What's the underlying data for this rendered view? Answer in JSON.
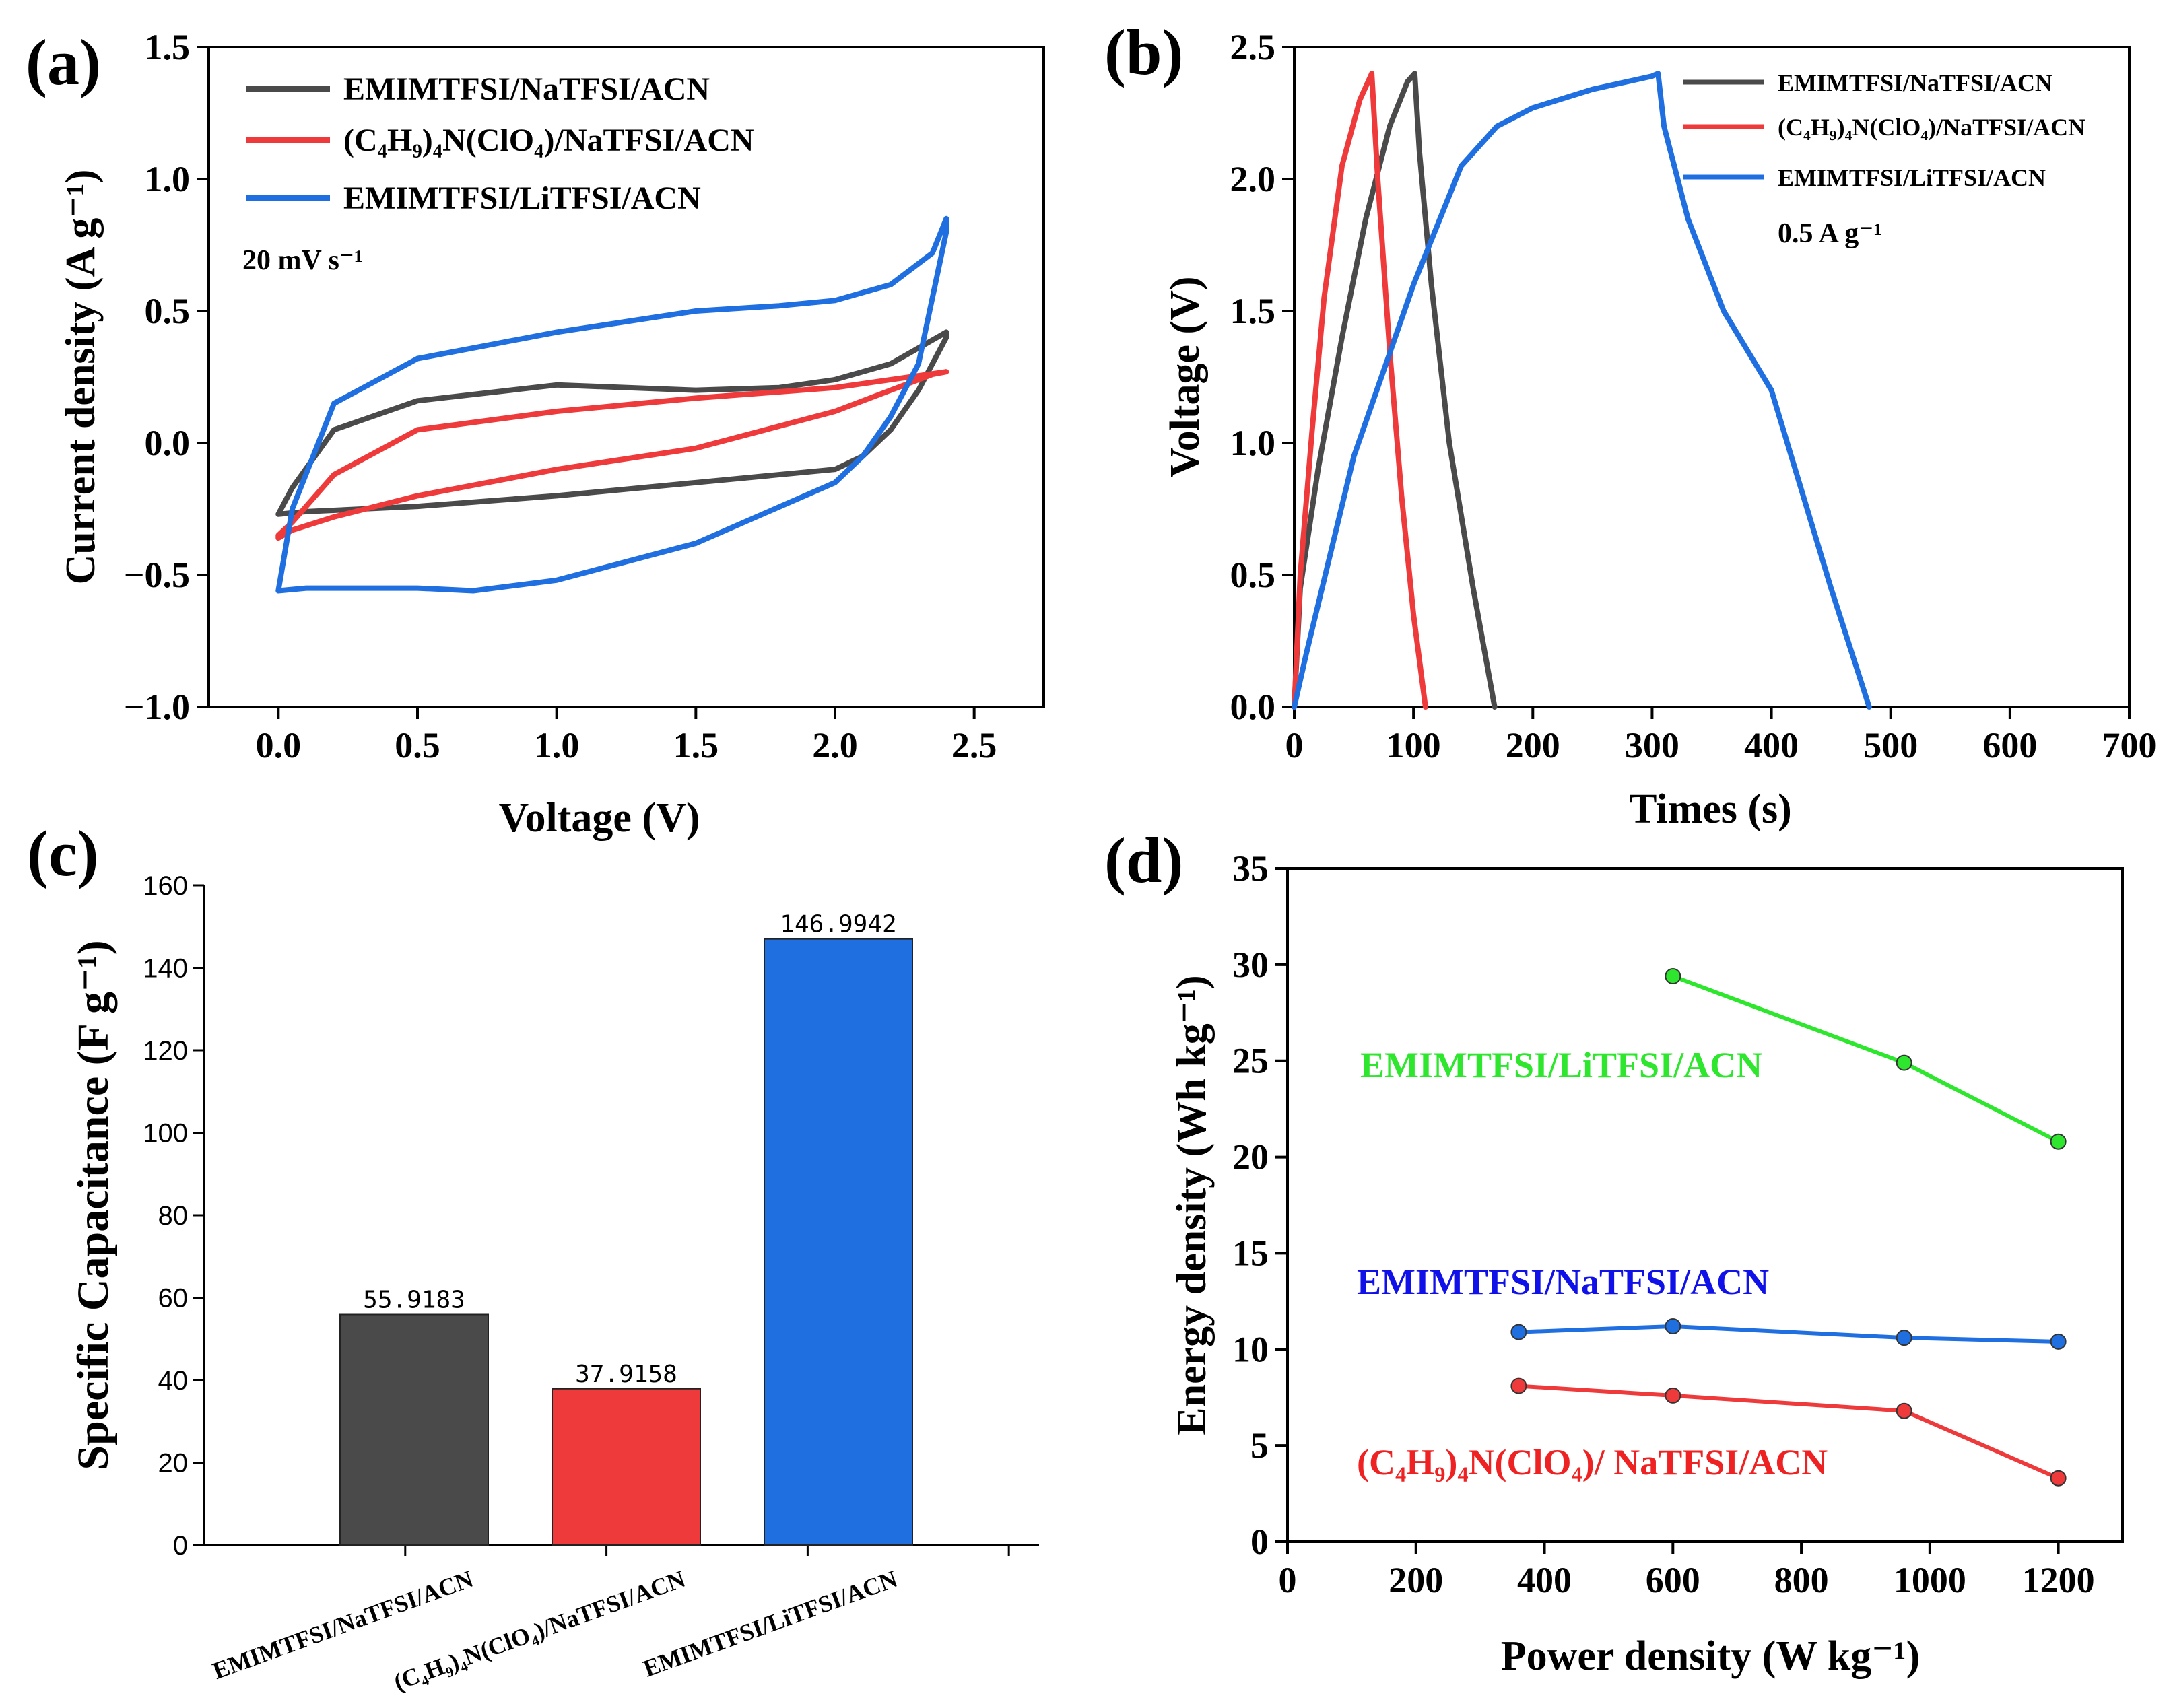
{
  "colors": {
    "black": "#4a4a4a",
    "red": "#ee3a3a",
    "blue": "#1f6fe0",
    "green": "#2ee62e",
    "d_blue": "#1010e8",
    "d_red": "#ee2222"
  },
  "chart_data": [
    {
      "panel": "(a)",
      "type": "line",
      "xlabel": "Voltage (V)",
      "ylabel": "Current density (A g⁻¹)",
      "xlim": [
        -0.25,
        2.75
      ],
      "ylim": [
        -1.0,
        1.5
      ],
      "xticks": [
        "0.0",
        "0.5",
        "1.0",
        "1.5",
        "2.0",
        "2.5"
      ],
      "yticks": [
        "−1.0",
        "−0.5",
        "0.0",
        "0.5",
        "1.0",
        "1.5"
      ],
      "note": "20 mV s⁻¹",
      "series": [
        {
          "name": "EMIMTFSI/NaTFSI/ACN",
          "color": "#4a4a4a",
          "x": [
            0,
            0.05,
            0.2,
            0.5,
            1.0,
            1.5,
            1.8,
            2.0,
            2.2,
            2.4,
            2.4,
            2.3,
            2.2,
            2.1,
            2.0,
            1.5,
            1.0,
            0.5,
            0.1,
            0,
            0
          ],
          "y": [
            -0.27,
            -0.17,
            0.05,
            0.16,
            0.22,
            0.2,
            0.21,
            0.24,
            0.3,
            0.42,
            0.4,
            0.2,
            0.05,
            -0.05,
            -0.1,
            -0.15,
            -0.2,
            -0.24,
            -0.26,
            -0.27,
            -0.27
          ]
        },
        {
          "name": "(C₄H₉)₄N(ClO₄)/NaTFSI/ACN",
          "color": "#ee3a3a",
          "x": [
            0,
            0.05,
            0.2,
            0.5,
            1.0,
            1.5,
            2.0,
            2.2,
            2.4,
            2.35,
            2.2,
            2.0,
            1.5,
            1.0,
            0.5,
            0.2,
            0.05,
            0,
            0
          ],
          "y": [
            -0.35,
            -0.3,
            -0.12,
            0.05,
            0.12,
            0.17,
            0.21,
            0.24,
            0.27,
            0.26,
            0.2,
            0.12,
            -0.02,
            -0.1,
            -0.2,
            -0.28,
            -0.33,
            -0.36,
            -0.35
          ]
        },
        {
          "name": "EMIMTFSI/LiTFSI/ACN",
          "color": "#1f6fe0",
          "x": [
            0,
            0.05,
            0.2,
            0.5,
            1.0,
            1.5,
            1.8,
            2.0,
            2.2,
            2.35,
            2.4,
            2.4,
            2.3,
            2.2,
            2.1,
            2.0,
            1.5,
            1.0,
            0.7,
            0.5,
            0.1,
            0,
            0
          ],
          "y": [
            -0.56,
            -0.25,
            0.15,
            0.32,
            0.42,
            0.5,
            0.52,
            0.54,
            0.6,
            0.72,
            0.85,
            0.8,
            0.3,
            0.1,
            -0.05,
            -0.15,
            -0.38,
            -0.52,
            -0.56,
            -0.55,
            -0.55,
            -0.56,
            -0.56
          ]
        }
      ]
    },
    {
      "panel": "(b)",
      "type": "line",
      "xlabel": "Times (s)",
      "ylabel": "Voltage (V)",
      "xlim": [
        0,
        700
      ],
      "ylim": [
        0,
        2.5
      ],
      "xticks": [
        "0",
        "100",
        "200",
        "300",
        "400",
        "500",
        "600",
        "700"
      ],
      "yticks": [
        "0.0",
        "0.5",
        "1.0",
        "1.5",
        "2.0",
        "2.5"
      ],
      "note": "0.5 A g⁻¹",
      "series": [
        {
          "name": "EMIMTFSI/NaTFSI/ACN",
          "color": "#4a4a4a",
          "x": [
            0,
            5,
            20,
            40,
            60,
            80,
            95,
            101,
            105,
            115,
            130,
            150,
            168
          ],
          "y": [
            0,
            0.45,
            0.9,
            1.4,
            1.85,
            2.2,
            2.37,
            2.4,
            2.1,
            1.6,
            1.0,
            0.45,
            0
          ]
        },
        {
          "name": "(C₄H₉)₄N(ClO₄)/NaTFSI/ACN",
          "color": "#ee3a3a",
          "x": [
            0,
            5,
            15,
            25,
            40,
            55,
            62,
            65,
            70,
            80,
            90,
            100,
            110
          ],
          "y": [
            0,
            0.5,
            1.05,
            1.55,
            2.05,
            2.3,
            2.37,
            2.4,
            2.0,
            1.35,
            0.8,
            0.35,
            0
          ]
        },
        {
          "name": "EMIMTFSI/LiTFSI/ACN",
          "color": "#1f6fe0",
          "x": [
            0,
            10,
            50,
            100,
            140,
            170,
            200,
            250,
            300,
            305,
            310,
            330,
            360,
            380,
            400,
            420,
            450,
            482
          ],
          "y": [
            0,
            0.2,
            0.95,
            1.6,
            2.05,
            2.2,
            2.27,
            2.34,
            2.39,
            2.4,
            2.2,
            1.85,
            1.5,
            1.35,
            1.2,
            0.9,
            0.45,
            0
          ]
        }
      ]
    },
    {
      "panel": "(c)",
      "type": "bar",
      "ylabel": "Specific Capacitance (F g⁻¹)",
      "ylim": [
        0,
        160
      ],
      "yticks": [
        "0",
        "20",
        "40",
        "60",
        "80",
        "100",
        "120",
        "140",
        "160"
      ],
      "categories": [
        "EMIMTFSI/NaTFSI/ACN",
        "(C₄H₉)₄N(ClO₄)/NaTFSI/ACN",
        "EMIMTFSI/LiTFSI/ACN"
      ],
      "values": [
        55.9183,
        37.9158,
        146.9942
      ],
      "value_labels": [
        "55.9183",
        "37.9158",
        "146.9942"
      ],
      "colors": [
        "#4a4a4a",
        "#ee3a3a",
        "#1f6fe0"
      ]
    },
    {
      "panel": "(d)",
      "type": "line",
      "xlabel": "Power density (W kg⁻¹)",
      "ylabel": "Energy density (Wh kg⁻¹)",
      "xlim": [
        0,
        1300
      ],
      "ylim": [
        0,
        35
      ],
      "xticks": [
        "0",
        "200",
        "400",
        "600",
        "800",
        "1000",
        "1200"
      ],
      "yticks": [
        "0",
        "5",
        "10",
        "15",
        "20",
        "25",
        "30",
        "35"
      ],
      "series": [
        {
          "name": "EMIMTFSI/LiTFSI/ACN",
          "color": "#2ee62e",
          "x": [
            600,
            960,
            1200
          ],
          "y": [
            29.4,
            24.9,
            20.8
          ]
        },
        {
          "name": "EMIMTFSI/NaTFSI/ACN",
          "color": "#1f6fe0",
          "x": [
            360,
            600,
            960,
            1200
          ],
          "y": [
            10.9,
            11.2,
            10.6,
            10.4
          ]
        },
        {
          "name": "(C₄H₉)₄N(ClO₄)/ NaTFSI/ACN",
          "color": "#ee3a3a",
          "x": [
            360,
            600,
            960,
            1200
          ],
          "y": [
            8.1,
            7.6,
            6.8,
            3.3
          ]
        }
      ],
      "annotations": [
        "EMIMTFSI/LiTFSI/ACN",
        "EMIMTFSI/NaTFSI/ACN",
        "(C₄H₉)₄N(ClO₄)/ NaTFSI/ACN"
      ],
      "annotation_colors": [
        "#2ee62e",
        "#1010e8",
        "#ee2222"
      ]
    }
  ]
}
